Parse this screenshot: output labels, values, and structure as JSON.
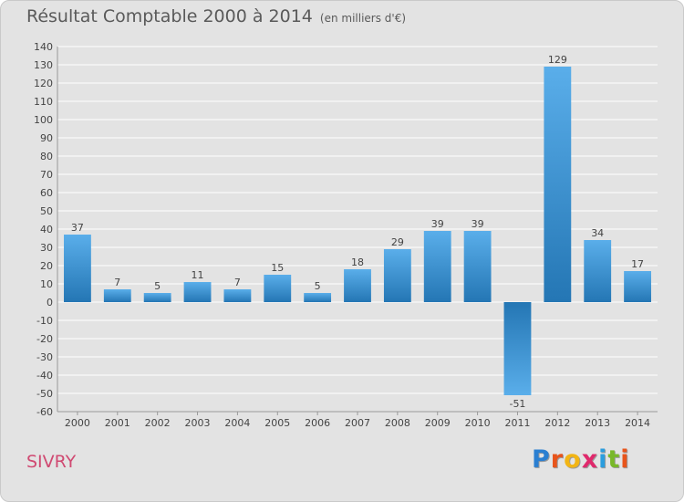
{
  "title": "Résultat Comptable 2000 à 2014",
  "title_unit": "(en milliers d'€)",
  "commune": "SIVRY",
  "logo": {
    "letters": [
      "P",
      "r",
      "o",
      "x",
      "i",
      "t",
      "i"
    ],
    "colors": [
      "#2a7fd1",
      "#e8541b",
      "#f2b515",
      "#e0296c",
      "#2b9dde",
      "#79b829",
      "#e8541b"
    ]
  },
  "colors": {
    "bar_top": "#5aaeea",
    "bar_bottom": "#2476b4",
    "grid": "#ffffff",
    "text": "#444444",
    "axis": "#999999"
  },
  "chart_data": {
    "type": "bar",
    "title": "Résultat Comptable 2000 à 2014",
    "ylabel": "en milliers d'€",
    "xlabel": "",
    "categories": [
      "2000",
      "2001",
      "2002",
      "2003",
      "2004",
      "2005",
      "2006",
      "2007",
      "2008",
      "2009",
      "2010",
      "2011",
      "2012",
      "2013",
      "2014"
    ],
    "values": [
      37,
      7,
      5,
      11,
      7,
      15,
      5,
      18,
      29,
      39,
      39,
      -51,
      129,
      34,
      17
    ],
    "ylim": [
      -60,
      140
    ],
    "ytick_step": 10,
    "grid": true
  }
}
